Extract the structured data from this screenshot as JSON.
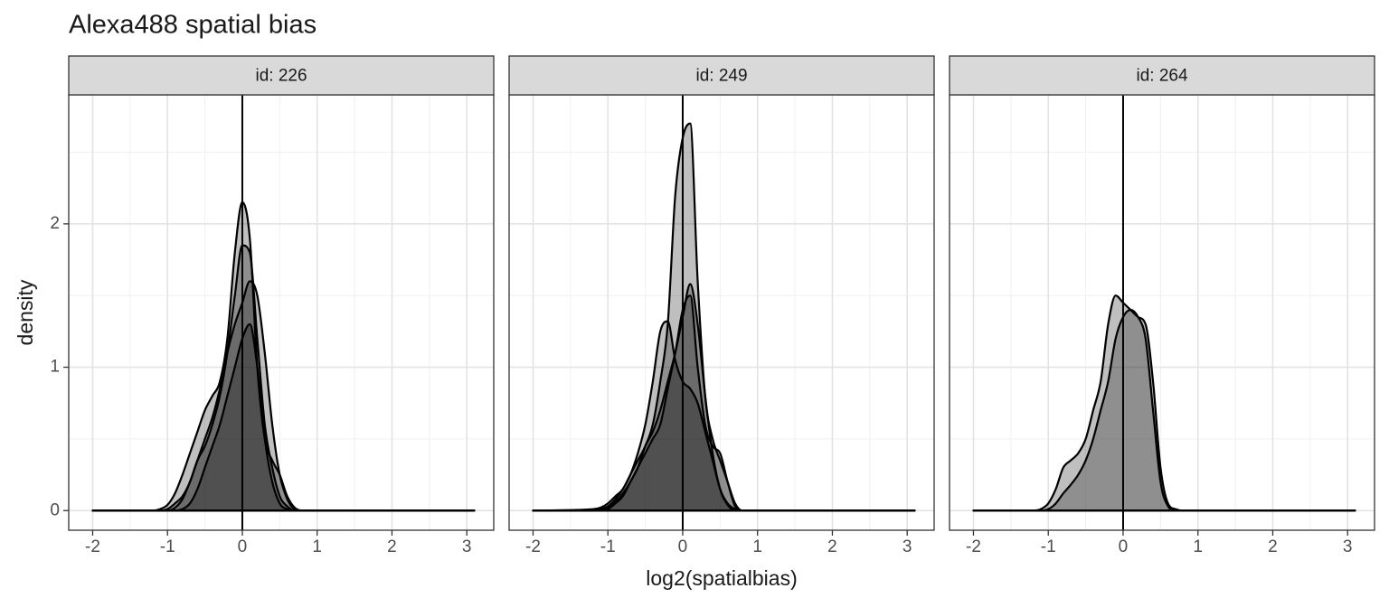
{
  "chart_data": {
    "type": "density",
    "title": "Alexa488 spatial bias",
    "xlabel": "log2(spatialbias)",
    "ylabel": "density",
    "xlim": [
      -2.32,
      3.36
    ],
    "ylim": [
      -0.137,
      2.9
    ],
    "xticks": [
      -2,
      -1,
      0,
      1,
      2,
      3
    ],
    "yticks": [
      0,
      1,
      2
    ],
    "xminor": [
      -1.5,
      -0.5,
      0.5,
      1.5,
      2.5
    ],
    "yminor": [
      0.5,
      1.5,
      2.5
    ],
    "grid": true,
    "vline": 0,
    "color": "#000000",
    "fill_alpha": 0.25,
    "x": [
      -2.0,
      -1.2,
      -1.1,
      -1.0,
      -0.9,
      -0.8,
      -0.7,
      -0.6,
      -0.5,
      -0.4,
      -0.3,
      -0.2,
      -0.1,
      0.0,
      0.1,
      0.2,
      0.3,
      0.4,
      0.5,
      0.6,
      0.7,
      0.8,
      1.0,
      3.1
    ],
    "facets": [
      {
        "title": "id: 226",
        "series": [
          {
            "values": [
              0,
              0,
              0.01,
              0.04,
              0.12,
              0.25,
              0.4,
              0.55,
              0.7,
              0.8,
              0.9,
              1.2,
              1.8,
              2.15,
              1.9,
              1.0,
              0.5,
              0.35,
              0.25,
              0.1,
              0.02,
              0,
              0,
              0
            ]
          },
          {
            "values": [
              0,
              0,
              0,
              0.01,
              0.05,
              0.1,
              0.2,
              0.35,
              0.45,
              0.6,
              0.8,
              1.1,
              1.5,
              1.85,
              1.8,
              1.2,
              0.6,
              0.3,
              0.1,
              0.03,
              0,
              0,
              0,
              0
            ]
          },
          {
            "values": [
              0,
              0,
              0,
              0,
              0.02,
              0.08,
              0.2,
              0.35,
              0.5,
              0.65,
              0.85,
              1.1,
              1.3,
              1.45,
              1.6,
              1.5,
              1.1,
              0.6,
              0.25,
              0.08,
              0.01,
              0,
              0,
              0
            ]
          },
          {
            "values": [
              0,
              0,
              0,
              0,
              0,
              0.01,
              0.05,
              0.15,
              0.3,
              0.45,
              0.6,
              0.8,
              1.0,
              1.2,
              1.3,
              1.0,
              0.5,
              0.2,
              0.05,
              0.01,
              0,
              0,
              0,
              0
            ]
          }
        ]
      },
      {
        "title": "id: 249",
        "series": [
          {
            "values": [
              0,
              0.01,
              0.02,
              0.05,
              0.1,
              0.15,
              0.25,
              0.35,
              0.45,
              0.6,
              0.9,
              1.3,
              2.2,
              2.6,
              2.7,
              1.6,
              0.8,
              0.5,
              0.35,
              0.2,
              0.05,
              0,
              0,
              0
            ]
          },
          {
            "values": [
              0,
              0,
              0.01,
              0.03,
              0.08,
              0.15,
              0.25,
              0.4,
              0.6,
              0.9,
              1.25,
              1.32,
              1.05,
              0.9,
              0.85,
              0.75,
              0.55,
              0.35,
              0.15,
              0.05,
              0.01,
              0,
              0,
              0
            ]
          },
          {
            "values": [
              0,
              0,
              0,
              0.01,
              0.05,
              0.1,
              0.2,
              0.3,
              0.45,
              0.55,
              0.7,
              0.9,
              1.1,
              1.35,
              1.58,
              1.3,
              0.8,
              0.4,
              0.15,
              0.04,
              0,
              0,
              0,
              0
            ]
          },
          {
            "values": [
              0,
              0,
              0,
              0.02,
              0.06,
              0.12,
              0.2,
              0.3,
              0.4,
              0.5,
              0.6,
              0.85,
              1.1,
              1.4,
              1.5,
              1.0,
              0.6,
              0.45,
              0.4,
              0.2,
              0.03,
              0,
              0,
              0
            ]
          }
        ]
      },
      {
        "title": "id: 264",
        "series": [
          {
            "values": [
              0,
              0,
              0.01,
              0.05,
              0.15,
              0.3,
              0.35,
              0.4,
              0.5,
              0.7,
              0.9,
              1.3,
              1.5,
              1.45,
              1.4,
              1.35,
              1.3,
              0.9,
              0.3,
              0.05,
              0.01,
              0,
              0,
              0
            ]
          },
          {
            "values": [
              0,
              0,
              0,
              0.01,
              0.05,
              0.12,
              0.18,
              0.25,
              0.35,
              0.5,
              0.7,
              0.9,
              1.2,
              1.35,
              1.4,
              1.35,
              1.2,
              0.7,
              0.2,
              0.03,
              0,
              0,
              0,
              0
            ]
          }
        ]
      }
    ]
  }
}
